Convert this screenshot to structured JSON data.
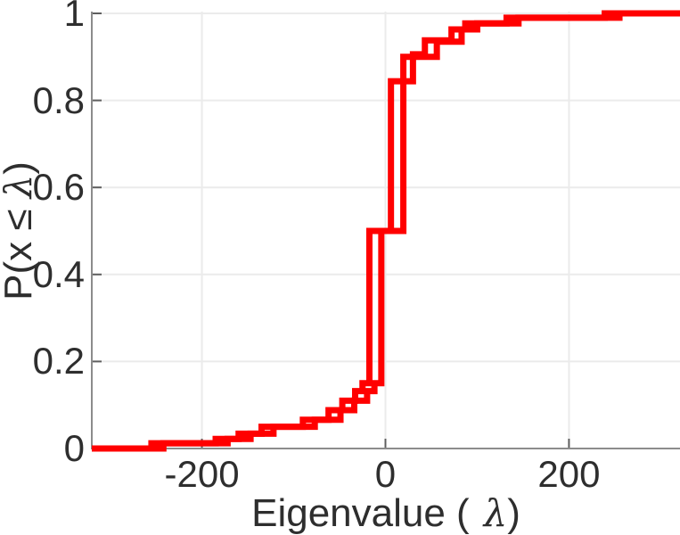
{
  "figure": {
    "background": "#ffffff",
    "spine_color": "#8c8c8c",
    "tick_mark_color": "#5f5f5f",
    "grid_color": "#ebebeb",
    "text_color": "#2e2e2e"
  },
  "chart_data": {
    "type": "line",
    "subtype": "empirical-cdf-stairs",
    "title": "",
    "xlabel": "Eigenvalue ( λ)",
    "xlabel_parts": {
      "pre": "Eigenvalue (",
      "lambda": "λ",
      "post": ")"
    },
    "ylabel": "P(x ≤ λ)",
    "ylabel_parts": {
      "pre": "P(x ≤ ",
      "lambda": "λ",
      "post": ")"
    },
    "xlim": [
      -320,
      321
    ],
    "ylim": [
      0,
      1
    ],
    "xticks": [
      -200,
      0,
      200
    ],
    "yticks": [
      0,
      0.2,
      0.4,
      0.6,
      0.8,
      1
    ],
    "grid": true,
    "legend": null,
    "series": [
      {
        "name": "ecdf-curve-1",
        "color": "#ff0000",
        "x": [
          -255,
          -185,
          -160,
          -135,
          -90,
          -62,
          -47,
          -33,
          -25,
          -17.5,
          6,
          30,
          43,
          72,
          87,
          132,
          239
        ],
        "p": [
          0.012,
          0.022,
          0.034,
          0.05,
          0.066,
          0.088,
          0.11,
          0.132,
          0.15,
          0.5,
          0.844,
          0.906,
          0.938,
          0.963,
          0.977,
          0.99,
          1.0
        ]
      },
      {
        "name": "ecdf-curve-2",
        "color": "#ff0000",
        "x": [
          -242,
          -172,
          -147,
          -122,
          -77,
          -49,
          -34,
          -20,
          -12,
          -4.5,
          19.5,
          56,
          83,
          100,
          145,
          255
        ],
        "p": [
          0.012,
          0.022,
          0.034,
          0.05,
          0.066,
          0.088,
          0.11,
          0.132,
          0.15,
          0.5,
          0.9,
          0.935,
          0.963,
          0.977,
          0.99,
          1.0
        ]
      }
    ]
  }
}
